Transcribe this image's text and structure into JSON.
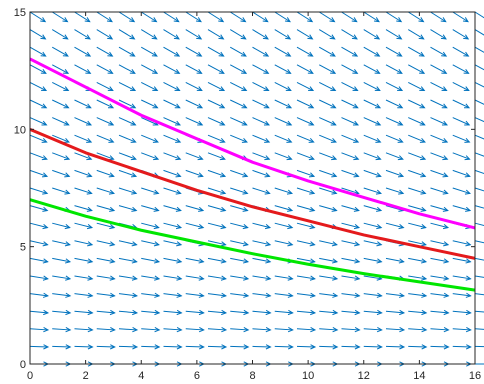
{
  "chart_data": {
    "type": "line",
    "title": "",
    "xlabel": "",
    "ylabel": "",
    "xlim": [
      0,
      16
    ],
    "ylim": [
      0,
      15
    ],
    "xticks": [
      0,
      2,
      4,
      6,
      8,
      10,
      12,
      14,
      16
    ],
    "yticks": [
      0,
      5,
      10,
      15
    ],
    "grid": false,
    "legend": "none",
    "box": true,
    "vector_field": {
      "type": "quiver",
      "x": [
        0,
        0.8,
        1.6,
        2.4,
        3.2,
        4.0,
        4.8,
        5.6,
        6.4,
        7.2,
        8.0,
        8.8,
        9.6,
        10.4,
        11.2,
        12.0,
        12.8,
        13.6,
        14.4,
        15.2,
        16.0
      ],
      "y": [
        0,
        0.75,
        1.5,
        2.25,
        3.0,
        3.75,
        4.5,
        5.25,
        6.0,
        6.75,
        7.5,
        8.25,
        9.0,
        9.75,
        10.5,
        11.25,
        12.0,
        12.75,
        13.5,
        14.25,
        15.0
      ],
      "dx": 1,
      "dy": "-0.05*y",
      "color": "#0072BD"
    },
    "series": [
      {
        "color": "#FF00FF",
        "x": [
          0,
          2,
          4,
          6,
          8,
          10,
          12,
          14,
          16
        ],
        "y": [
          13.0,
          11.8,
          10.6,
          9.6,
          8.6,
          7.8,
          7.1,
          6.4,
          5.8
        ]
      },
      {
        "color": "#E41A1C",
        "x": [
          0,
          2,
          4,
          6,
          8,
          10,
          12,
          14,
          16
        ],
        "y": [
          10.0,
          9.0,
          8.2,
          7.4,
          6.7,
          6.1,
          5.5,
          5.0,
          4.5
        ]
      },
      {
        "color": "#00E600",
        "x": [
          0,
          2,
          4,
          6,
          8,
          10,
          12,
          14,
          16
        ],
        "y": [
          7.0,
          6.3,
          5.7,
          5.2,
          4.7,
          4.25,
          3.85,
          3.5,
          3.15
        ]
      }
    ]
  }
}
